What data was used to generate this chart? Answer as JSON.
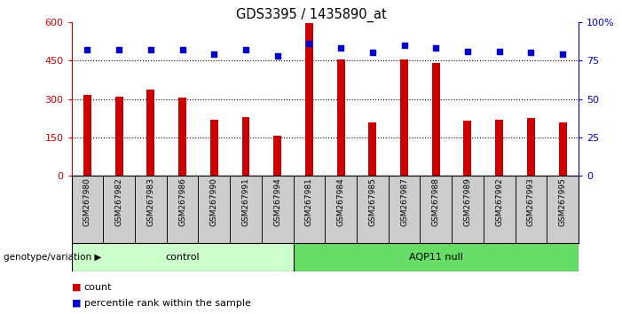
{
  "title": "GDS3395 / 1435890_at",
  "categories": [
    "GSM267980",
    "GSM267982",
    "GSM267983",
    "GSM267986",
    "GSM267990",
    "GSM267991",
    "GSM267994",
    "GSM267981",
    "GSM267984",
    "GSM267985",
    "GSM267987",
    "GSM267988",
    "GSM267989",
    "GSM267992",
    "GSM267993",
    "GSM267995"
  ],
  "bar_values": [
    315,
    310,
    335,
    305,
    220,
    230,
    155,
    595,
    455,
    210,
    455,
    440,
    215,
    220,
    225,
    210
  ],
  "dot_values": [
    82,
    82,
    82,
    82,
    79,
    82,
    78,
    86,
    83,
    80,
    85,
    83,
    81,
    81,
    80,
    79
  ],
  "bar_color": "#cc0000",
  "dot_color": "#0000cc",
  "ylim_left": [
    0,
    600
  ],
  "ylim_right": [
    0,
    100
  ],
  "yticks_left": [
    0,
    150,
    300,
    450,
    600
  ],
  "yticks_right": [
    0,
    25,
    50,
    75,
    100
  ],
  "grid_values": [
    150,
    300,
    450
  ],
  "control_count": 7,
  "group_labels": [
    "control",
    "AQP11 null"
  ],
  "group_colors": [
    "#ccffcc",
    "#66dd66"
  ],
  "genotype_label": "genotype/variation",
  "legend_count": "count",
  "legend_pct": "percentile rank within the sample",
  "bar_width": 0.25,
  "background_color": "#ffffff",
  "plot_bg": "#ffffff",
  "tick_label_color_left": "#cc0000",
  "tick_label_color_right": "#0000cc",
  "xlabel_area_color": "#cccccc"
}
